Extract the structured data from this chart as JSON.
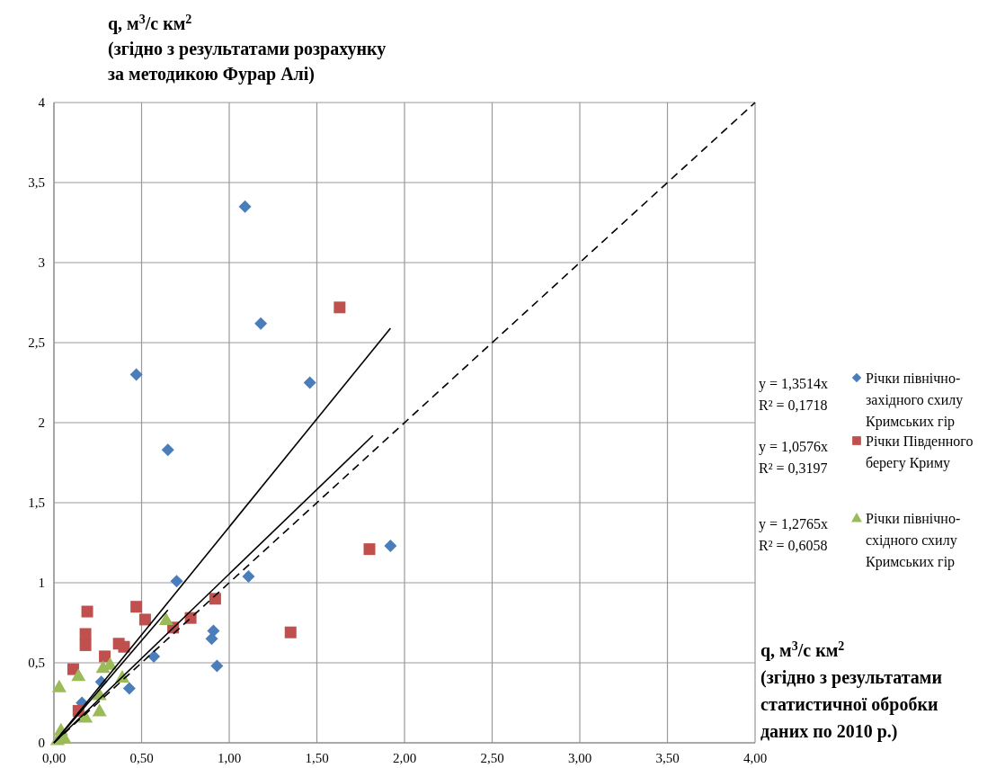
{
  "chart_data": {
    "type": "scatter",
    "ylabel": "q, м$^{3}$/с км$^{2}$\n(згідно з результатами розрахунку\nза методикою Фурар Алі)",
    "xlabel": "q, м$^{3}$/с км$^{2}$\n(згідно з результатами\nстатистичної обробки\nданих по 2010 р.)",
    "xlim": [
      0,
      4
    ],
    "ylim": [
      0,
      4
    ],
    "xticks": [
      {
        "value": 0,
        "label": "0,00"
      },
      {
        "value": 0.5,
        "label": "0,50"
      },
      {
        "value": 1,
        "label": "1,00"
      },
      {
        "value": 1.5,
        "label": "1,50"
      },
      {
        "value": 2,
        "label": "2,00"
      },
      {
        "value": 2.5,
        "label": "2,50"
      },
      {
        "value": 3,
        "label": "3,00"
      },
      {
        "value": 3.5,
        "label": "3,50"
      },
      {
        "value": 4,
        "label": "4,00"
      }
    ],
    "yticks": [
      0,
      {
        "value": 0.5,
        "label": "0,5"
      },
      1,
      {
        "value": 1.5,
        "label": "1,5"
      },
      2,
      {
        "value": 2.5,
        "label": "2,5"
      },
      3,
      {
        "value": 3.5,
        "label": "3,5"
      },
      4
    ],
    "grid": true,
    "legend": "right",
    "annotations": [
      "y = 1,3514x\nR² = 0,1718",
      "y = 1,0576x\nR² = 0,3197",
      "y = 1,2765x\nR² = 0,6058"
    ],
    "series": [
      {
        "name": "Річки північно-західного схилу Кримських гір",
        "color": "#4a7ebb",
        "marker": "diamond",
        "x": [
          1.09,
          1.18,
          0.47,
          1.46,
          0.65,
          1.92,
          0.7,
          1.11,
          0.91,
          0.9,
          0.93,
          0.57,
          0.43,
          0.27,
          0.16
        ],
        "values": [
          3.35,
          2.62,
          2.3,
          2.25,
          1.83,
          1.23,
          1.01,
          1.04,
          0.7,
          0.65,
          0.48,
          0.54,
          0.34,
          0.38,
          0.25
        ]
      },
      {
        "name": "Річки Південного берегу Криму",
        "color": "#c0504d",
        "marker": "square",
        "x": [
          1.63,
          1.8,
          1.35,
          0.92,
          0.78,
          0.68,
          0.52,
          0.47,
          0.19,
          0.18,
          0.18,
          0.37,
          0.4,
          0.29,
          0.11,
          0.14
        ],
        "values": [
          2.72,
          1.21,
          0.69,
          0.9,
          0.78,
          0.72,
          0.77,
          0.85,
          0.82,
          0.68,
          0.61,
          0.62,
          0.6,
          0.54,
          0.46,
          0.2
        ]
      },
      {
        "name": "Річки північно-східного схилу Кримських гір",
        "color": "#9bbb59",
        "marker": "triangle",
        "x": [
          0.64,
          0.03,
          0.14,
          0.28,
          0.32,
          0.39,
          0.26,
          0.26,
          0.18,
          0.04,
          0.06,
          0.02
        ],
        "values": [
          0.77,
          0.35,
          0.42,
          0.47,
          0.49,
          0.41,
          0.3,
          0.2,
          0.16,
          0.08,
          0.03,
          0.02
        ]
      },
      {
        "type": "line",
        "color": "#000000",
        "line_style": "solid",
        "x": [
          0,
          1.92
        ],
        "values": [
          0,
          2.59
        ]
      },
      {
        "type": "line",
        "color": "#000000",
        "line_style": "solid",
        "x": [
          0,
          1.82
        ],
        "values": [
          0,
          1.92
        ]
      },
      {
        "type": "line",
        "color": "#000000",
        "line_style": "solid",
        "x": [
          0,
          0.65
        ],
        "values": [
          0,
          0.83
        ]
      },
      {
        "type": "line",
        "color": "#000000",
        "line_style": "dashed",
        "x": [
          0,
          4
        ],
        "values": [
          0,
          4
        ]
      }
    ]
  }
}
